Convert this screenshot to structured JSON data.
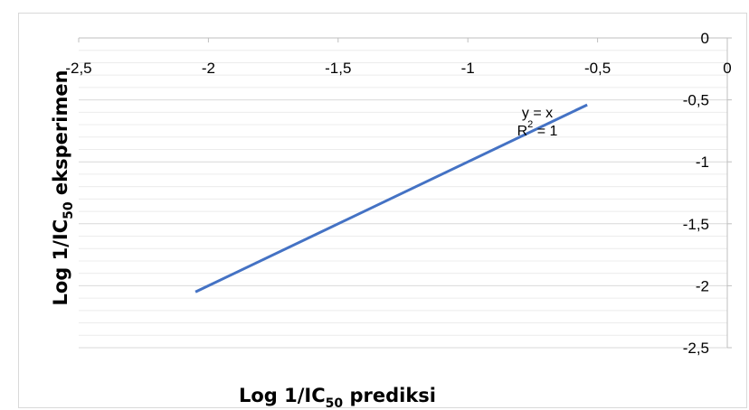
{
  "chart_data": {
    "type": "line",
    "series": [
      {
        "x": [
          -2.05,
          -0.54
        ],
        "y": [
          -2.05,
          -0.54
        ],
        "color": "#4472c4"
      }
    ],
    "xlim": [
      -2.5,
      0
    ],
    "ylim": [
      -2.5,
      0
    ],
    "x_ticks": [
      -2.5,
      -2,
      -1.5,
      -1,
      -0.5,
      0
    ],
    "x_tick_labels": [
      "-2,5",
      "-2",
      "-1,5",
      "-1",
      "-0,5",
      "0"
    ],
    "y_ticks": [
      0,
      -0.5,
      -1,
      -1.5,
      -2,
      -2.5
    ],
    "y_tick_labels": [
      "0",
      "-0,5",
      "-1",
      "-1,5",
      "-2",
      "-2,5"
    ],
    "x_axis_position": "top",
    "y_axis_position": "right",
    "xlabel": {
      "prefix": "Log 1/IC",
      "sub": "50",
      "suffix": " prediksi"
    },
    "ylabel": {
      "prefix": "Log 1/IC",
      "sub": "50",
      "suffix": " eksperimen"
    },
    "trendline_equation": "y = x",
    "r_squared": {
      "prefix": "R",
      "sup": "2",
      "suffix": " = 1"
    },
    "grid": {
      "major": true,
      "minor": true
    },
    "colors": {
      "line": "#4472c4",
      "grid_major": "#d9d9d9",
      "grid_minor": "#ececec",
      "axis": "#bfbfbf"
    }
  }
}
